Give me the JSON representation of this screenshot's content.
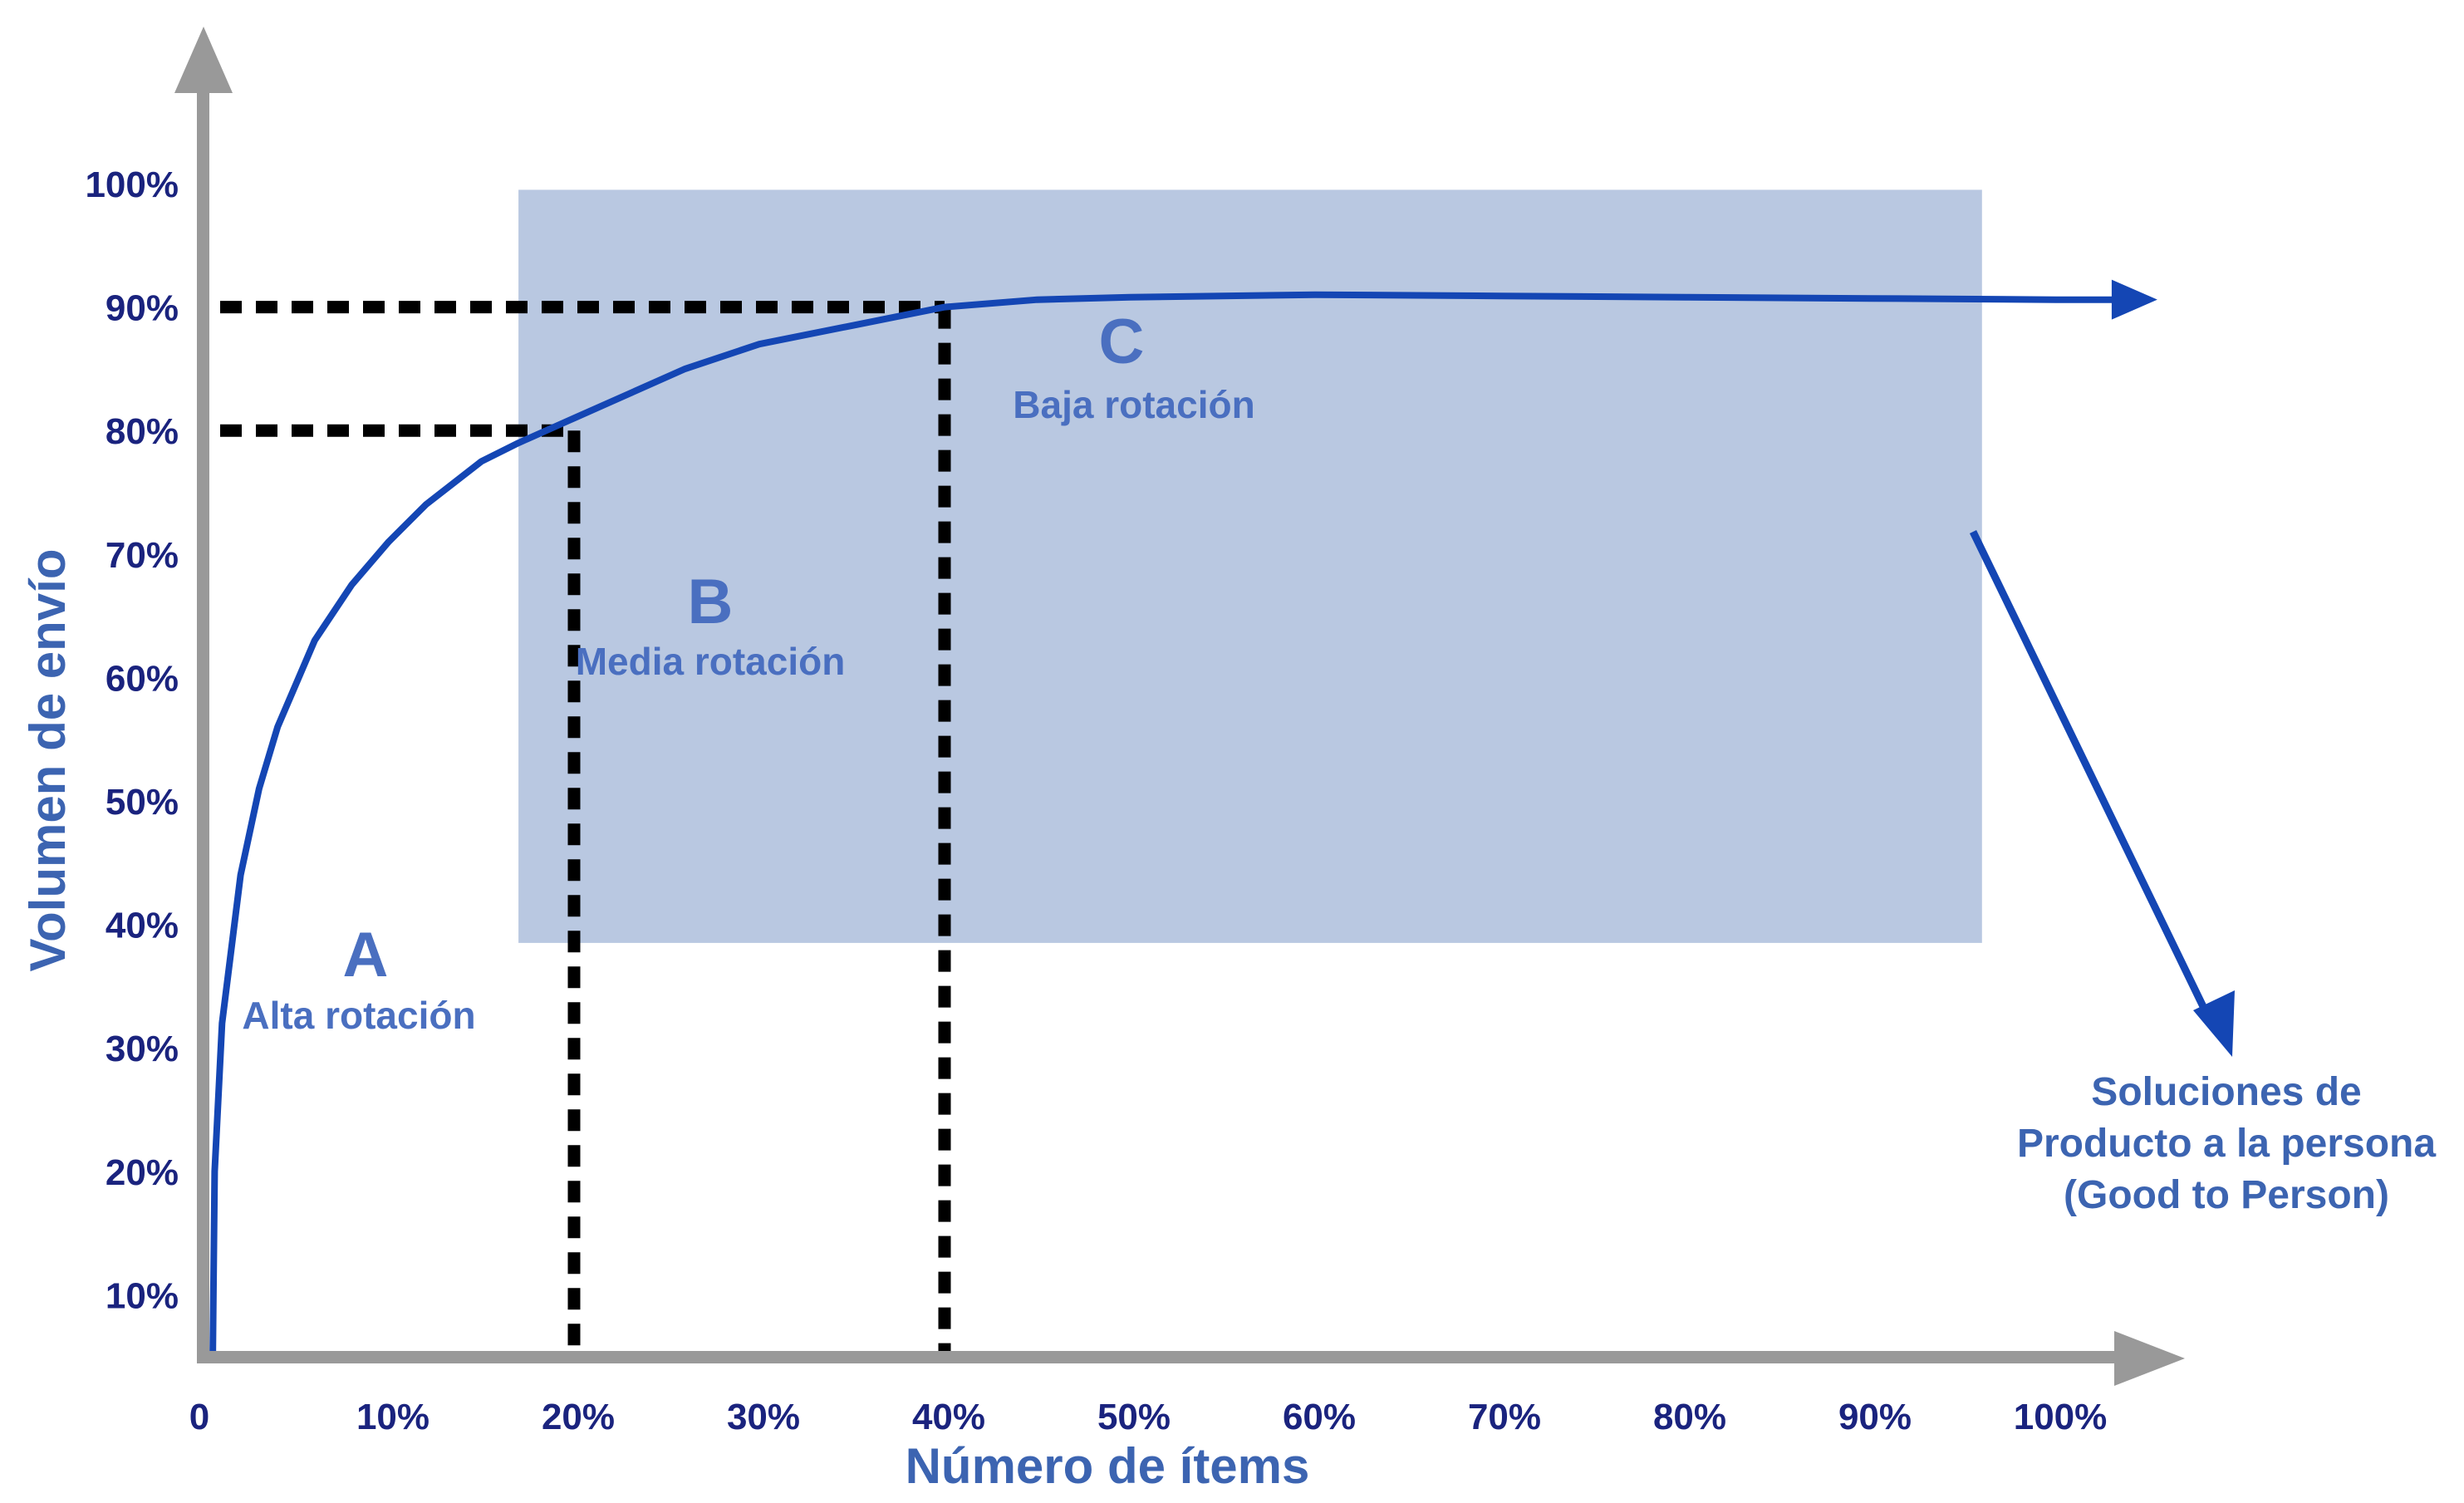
{
  "chart_data": {
    "type": "line",
    "xlabel": "Número de ítems",
    "ylabel": "Volumen de envío",
    "xlim": [
      0,
      100
    ],
    "ylim": [
      0,
      100
    ],
    "x_ticks": [
      "0",
      "10%",
      "20%",
      "30%",
      "40%",
      "50%",
      "60%",
      "70%",
      "80%",
      "90%",
      "100%"
    ],
    "y_ticks": [
      "10%",
      "20%",
      "30%",
      "40%",
      "50%",
      "60%",
      "70%",
      "80%",
      "90%",
      "100%"
    ],
    "series": [
      {
        "color": "#1446b4",
        "x": [
          0.5,
          0.6,
          1,
          2,
          3,
          4,
          6,
          8,
          10,
          12,
          15,
          17,
          20,
          23,
          26,
          30,
          35,
          40,
          45,
          50,
          60,
          70,
          80,
          90,
          100,
          103
        ],
        "y": [
          5,
          20,
          32,
          44,
          51,
          56,
          63,
          67.5,
          71,
          74,
          77.5,
          79,
          81,
          83,
          85,
          87,
          88.5,
          90,
          90.6,
          90.8,
          91,
          90.9,
          90.8,
          90.7,
          90.6,
          90.6
        ]
      }
    ],
    "reference_lines": [
      {
        "x": 20,
        "y": 80
      },
      {
        "x": 40,
        "y": 90
      }
    ],
    "shaded_region": {
      "x": [
        17,
        96
      ],
      "y": [
        38.5,
        99.5
      ],
      "color": "#b9c8e1"
    },
    "zones": [
      {
        "letter": "A",
        "label": "Alta rotación"
      },
      {
        "letter": "B",
        "label": "Media rotación"
      },
      {
        "letter": "C",
        "label": "Baja rotación"
      }
    ],
    "annotation": {
      "lines": [
        "Soluciones de",
        "Producto a la persona",
        "(Good to Person)"
      ]
    },
    "grid": false,
    "legend": "none"
  },
  "colors": {
    "axis": "#999999",
    "curve": "#1446b4",
    "dashed": "#000000",
    "region": "#b9c8e1",
    "tick_text": "#1a237e",
    "label_text": "#3c64b1"
  }
}
